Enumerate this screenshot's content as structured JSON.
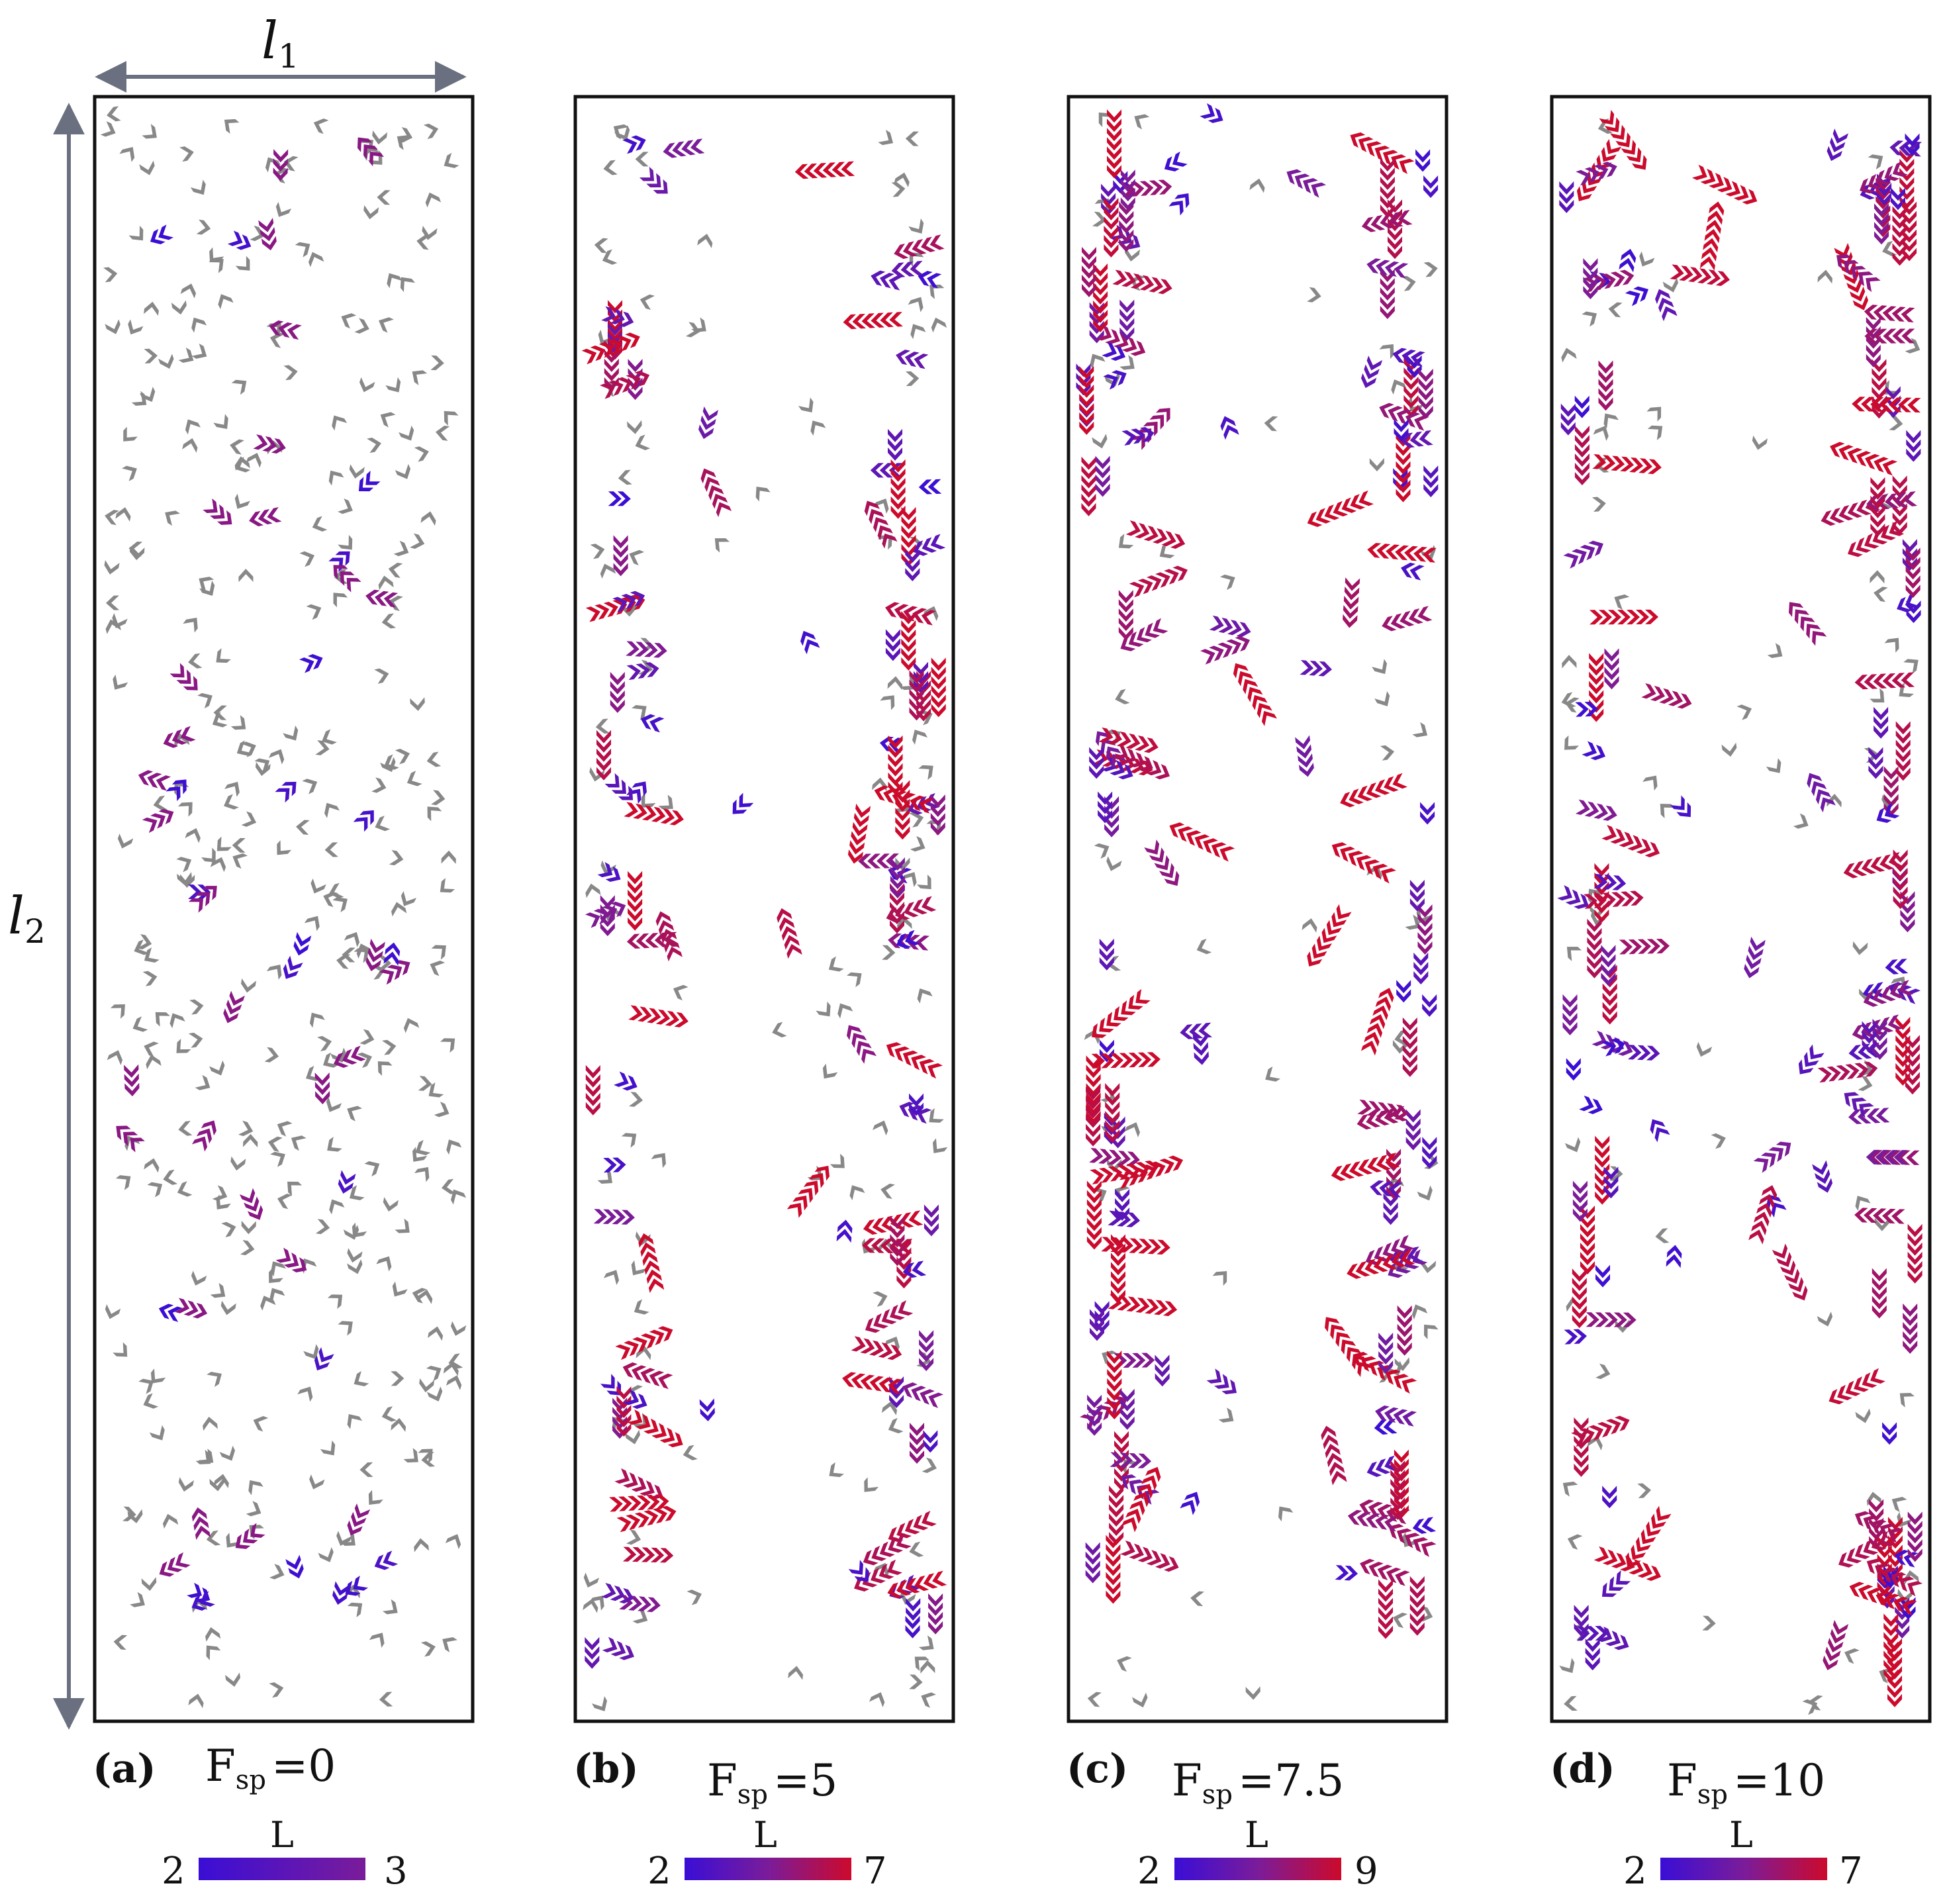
{
  "dimensions": {
    "width_label": "l",
    "width_sub": "1",
    "height_label": "l",
    "height_sub": "2"
  },
  "colors": {
    "free_particle": "#888888",
    "cluster_low": "#3a0ed6",
    "cluster_high": "#cc0a2c",
    "arrow": "#6b7080"
  },
  "panels": [
    {
      "letter": "(a)",
      "force_label": "F",
      "force_sub": "sp",
      "force_value": "=0",
      "colorbar_title": "L",
      "colorbar_min": "2",
      "colorbar_max": "3",
      "max_fraction": 0.6
    },
    {
      "letter": "(b)",
      "force_label": "F",
      "force_sub": "sp",
      "force_value": "=5",
      "colorbar_title": "L",
      "colorbar_min": "2",
      "colorbar_max": "7",
      "max_fraction": 1.0
    },
    {
      "letter": "(c)",
      "force_label": "F",
      "force_sub": "sp",
      "force_value": "=7.5",
      "colorbar_title": "L",
      "colorbar_min": "2",
      "colorbar_max": "9",
      "max_fraction": 1.0
    },
    {
      "letter": "(d)",
      "force_label": "F",
      "force_sub": "sp",
      "force_value": "=10",
      "colorbar_title": "L",
      "colorbar_min": "2",
      "colorbar_max": "7",
      "max_fraction": 1.0
    }
  ]
}
